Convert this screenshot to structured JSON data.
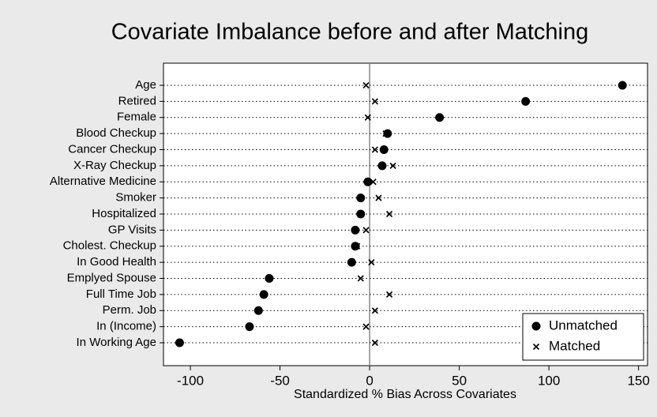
{
  "chart_data": {
    "type": "dotplot",
    "title": "Covariate Imbalance before and after Matching",
    "x_label": "Standardized % Bias Across Covariates",
    "categories": [
      "Age",
      "Retired",
      "Female",
      "Blood Checkup",
      "Cancer Checkup",
      "X-Ray Checkup",
      "Alternative Medicine",
      "Smoker",
      "Hospitalized",
      "GP Visits",
      "Cholest. Checkup",
      "In Good Health",
      "Emplyed Spouse",
      "Full Time Job",
      "Perm. Job",
      "In (Income)",
      "In Working Age"
    ],
    "series": [
      {
        "name": "Unmatched",
        "color": "#000000",
        "marker": "circle",
        "values": [
          141,
          87,
          39,
          10,
          8,
          7,
          -1,
          -5,
          -5,
          -8,
          -8,
          -10,
          -56,
          -59,
          -62,
          -67,
          -106
        ]
      },
      {
        "name": "Matched",
        "color": "#000000",
        "marker": "x",
        "values": [
          -2,
          3,
          -1,
          9,
          3,
          13,
          2,
          5,
          11,
          -2,
          -7,
          1,
          -5,
          11,
          3,
          -2,
          3
        ]
      }
    ],
    "xlim": [
      -115,
      155
    ],
    "xticks": [
      -100,
      -50,
      0,
      50,
      100,
      150
    ],
    "legend": "bottom-right"
  }
}
